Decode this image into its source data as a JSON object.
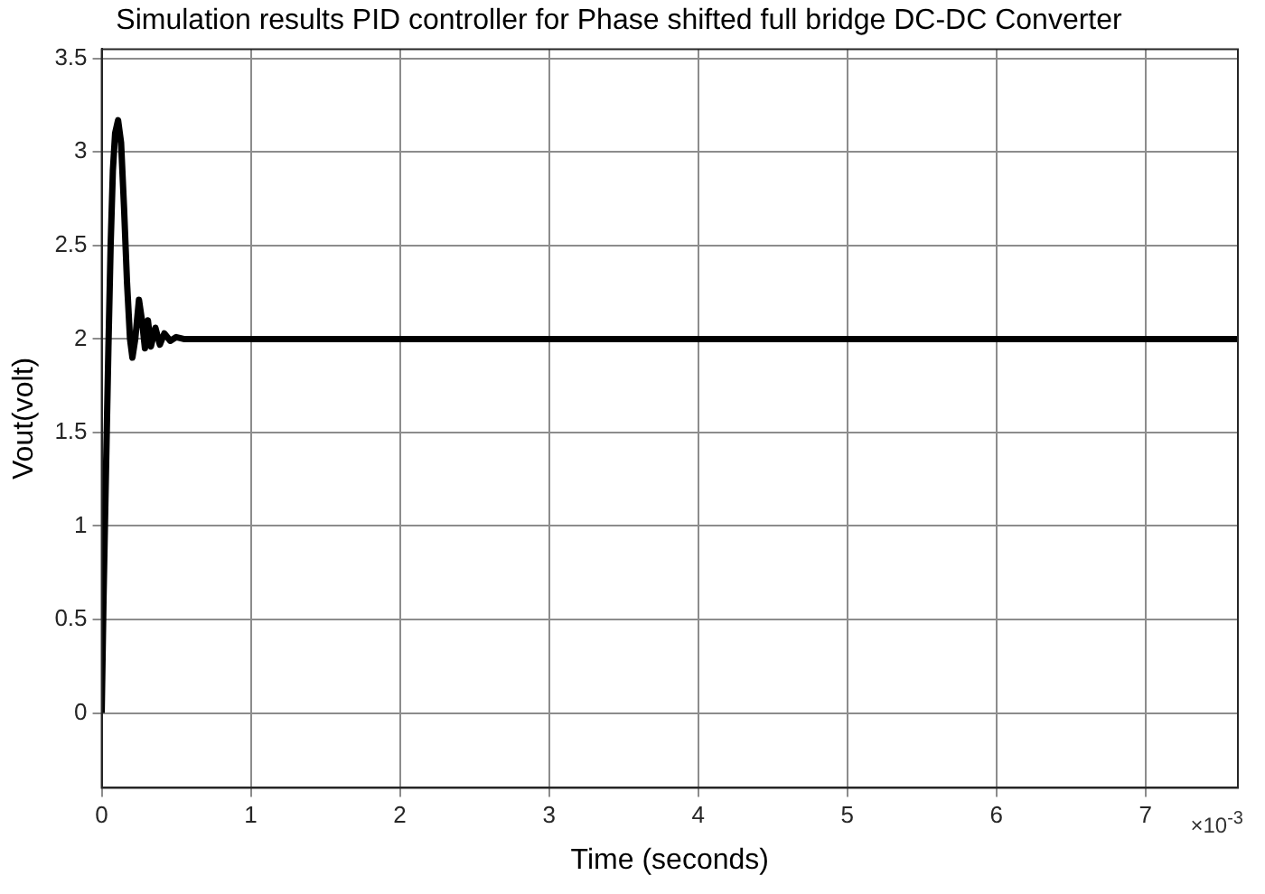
{
  "chart_data": {
    "type": "line",
    "title": "Simulation results PID controller for Phase shifted full bridge DC-DC Converter",
    "xlabel": "Time (seconds)",
    "ylabel": "Vout(volt)",
    "annotations": [
      "×10$^{-3}$"
    ],
    "series": [
      {
        "color": "#000000",
        "x": [
          0,
          0.012,
          0.028,
          0.045,
          0.06,
          0.075,
          0.09,
          0.11,
          0.13,
          0.15,
          0.17,
          0.19,
          0.206,
          0.225,
          0.25,
          0.27,
          0.29,
          0.31,
          0.33,
          0.36,
          0.39,
          0.42,
          0.46,
          0.5,
          0.55,
          0.6,
          1,
          2,
          3,
          4,
          5,
          6,
          7,
          7.62
        ],
        "values": [
          0,
          0.6,
          1.26,
          1.95,
          2.5,
          2.9,
          3.1,
          3.17,
          3.05,
          2.7,
          2.3,
          2.0,
          1.9,
          2.0,
          2.21,
          2.1,
          1.95,
          2.1,
          1.96,
          2.06,
          1.97,
          2.03,
          1.99,
          2.01,
          2.0,
          2.0,
          2.0,
          2.0,
          2.0,
          2.0,
          2.0,
          2.0,
          2.0,
          2.0
        ]
      }
    ],
    "xlim": [
      0,
      7.62
    ],
    "xticks": [
      0,
      1,
      2,
      3,
      4,
      5,
      6,
      7
    ],
    "ylim": [
      -0.4,
      3.55
    ],
    "yticks": [
      0,
      0.5,
      1,
      1.5,
      2,
      2.5,
      3,
      3.5
    ],
    "grid": true,
    "legend": false,
    "marker": "none",
    "line_style": "solid"
  }
}
